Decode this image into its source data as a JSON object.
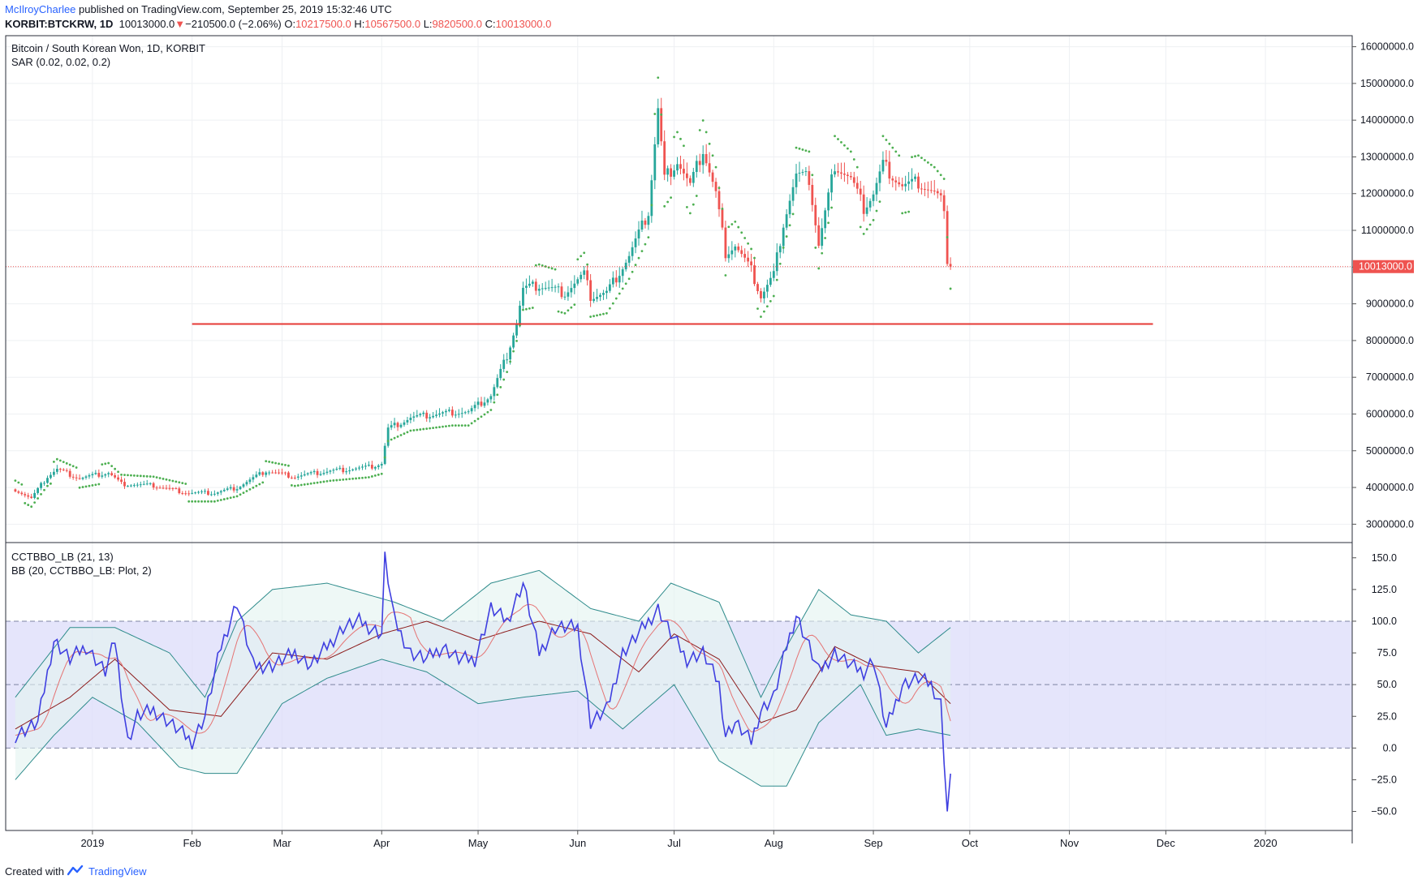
{
  "header": {
    "author": "McIlroyCharlee",
    "published": " published on TradingView.com, September 25, 2019 15:32:46 UTC",
    "symbol": "KORBIT:BTCKRW, 1D",
    "last": "10013000.0",
    "arrow": "▼",
    "change": "−210500.0 (−2.06%)",
    "o_label": "O:",
    "o_value": "10217500.0",
    "h_label": "H:",
    "h_value": "10567500.0",
    "l_label": "L:",
    "l_value": "9820500.0",
    "c_label": "C:",
    "c_value": "10013000.0"
  },
  "footer": {
    "created": "Created with",
    "brand": "TradingView"
  },
  "colors": {
    "up": "#26a69a",
    "down": "#ef5350",
    "sar": "#4caf50",
    "hline": "#e53935",
    "cct": "#3f3fe0",
    "bb_basis": "#8b1a1a",
    "bb_band": "#2e8b8b",
    "bb_fill": "#e3f4f0",
    "zone": "#dcdcfa",
    "grid": "#eef0f3"
  },
  "chart_data": [
    {
      "type": "candlestick",
      "title": "Bitcoin / South Korean Won, 1D, KORBIT",
      "indicator": "SAR (0.02, 0.02, 0.2)",
      "yticks": [
        3000000,
        4000000,
        5000000,
        6000000,
        7000000,
        8000000,
        9000000,
        10000000,
        11000000,
        12000000,
        13000000,
        14000000,
        15000000,
        16000000
      ],
      "ylim": [
        2500000,
        16300000
      ],
      "last_price": 10013000,
      "last_price_label": "10013000.0",
      "horizontal_line": {
        "value": 8450000,
        "from": "2019-02-01",
        "to": "2019-11-27"
      },
      "close_series_keypoints": [
        [
          "2018-12-08",
          3950000
        ],
        [
          "2018-12-13",
          3700000
        ],
        [
          "2018-12-18",
          4300000
        ],
        [
          "2018-12-21",
          4500000
        ],
        [
          "2018-12-28",
          4250000
        ],
        [
          "2019-01-06",
          4400000
        ],
        [
          "2019-01-10",
          4100000
        ],
        [
          "2019-01-20",
          4050000
        ],
        [
          "2019-01-31",
          3850000
        ],
        [
          "2019-02-08",
          3850000
        ],
        [
          "2019-02-15",
          4000000
        ],
        [
          "2019-02-24",
          4450000
        ],
        [
          "2019-03-05",
          4300000
        ],
        [
          "2019-03-16",
          4450000
        ],
        [
          "2019-03-28",
          4550000
        ],
        [
          "2019-04-01",
          4650000
        ],
        [
          "2019-04-03",
          5600000
        ],
        [
          "2019-04-10",
          5900000
        ],
        [
          "2019-04-23",
          6050000
        ],
        [
          "2019-04-28",
          6050000
        ],
        [
          "2019-05-05",
          6500000
        ],
        [
          "2019-05-10",
          7600000
        ],
        [
          "2019-05-13",
          8500000
        ],
        [
          "2019-05-15",
          9400000
        ],
        [
          "2019-05-20",
          9500000
        ],
        [
          "2019-05-28",
          9300000
        ],
        [
          "2019-06-03",
          9800000
        ],
        [
          "2019-06-05",
          9200000
        ],
        [
          "2019-06-10",
          9300000
        ],
        [
          "2019-06-17",
          10300000
        ],
        [
          "2019-06-23",
          11500000
        ],
        [
          "2019-06-26",
          14300000
        ],
        [
          "2019-06-28",
          12400000
        ],
        [
          "2019-07-02",
          12900000
        ],
        [
          "2019-07-06",
          12200000
        ],
        [
          "2019-07-10",
          13200000
        ],
        [
          "2019-07-14",
          12000000
        ],
        [
          "2019-07-17",
          10400000
        ],
        [
          "2019-07-20",
          10600000
        ],
        [
          "2019-07-25",
          9900000
        ],
        [
          "2019-07-28",
          9200000
        ],
        [
          "2019-08-01",
          9800000
        ],
        [
          "2019-08-04",
          11200000
        ],
        [
          "2019-08-08",
          12500000
        ],
        [
          "2019-08-12",
          12400000
        ],
        [
          "2019-08-15",
          10600000
        ],
        [
          "2019-08-20",
          12800000
        ],
        [
          "2019-08-25",
          12400000
        ],
        [
          "2019-08-29",
          11600000
        ],
        [
          "2019-09-01",
          12000000
        ],
        [
          "2019-09-04",
          12800000
        ],
        [
          "2019-09-10",
          12200000
        ],
        [
          "2019-09-15",
          12300000
        ],
        [
          "2019-09-20",
          12000000
        ],
        [
          "2019-09-23",
          11700000
        ],
        [
          "2019-09-24",
          10200000
        ],
        [
          "2019-09-25",
          10013000
        ]
      ]
    },
    {
      "type": "line",
      "title": "CCTBBO_LB (21, 13)",
      "indicator": "BB (20, CCTBBO_LB: Plot, 2)",
      "yticks": [
        -50,
        -25,
        0,
        25,
        50,
        75,
        100,
        125,
        150
      ],
      "ytick_labels": [
        "−50.0",
        "−25.0",
        "0.0",
        "25.0",
        "50.0",
        "75.0",
        "100.0",
        "125.0",
        "150.0"
      ],
      "ylim": [
        -65,
        162
      ],
      "zone": [
        0,
        100
      ],
      "dashed_levels": [
        0,
        50,
        100
      ],
      "series": [
        {
          "name": "CCTBBO_LB",
          "x": [
            "2018-12-08",
            "2018-12-15",
            "2018-12-20",
            "2018-12-25",
            "2018-12-30",
            "2019-01-05",
            "2019-01-08",
            "2019-01-12",
            "2019-01-15",
            "2019-01-20",
            "2019-01-25",
            "2019-02-01",
            "2019-02-05",
            "2019-02-10",
            "2019-02-15",
            "2019-02-20",
            "2019-02-26",
            "2019-03-05",
            "2019-03-10",
            "2019-03-15",
            "2019-03-20",
            "2019-03-25",
            "2019-04-01",
            "2019-04-02",
            "2019-04-05",
            "2019-04-10",
            "2019-04-15",
            "2019-04-20",
            "2019-04-25",
            "2019-04-30",
            "2019-05-05",
            "2019-05-10",
            "2019-05-15",
            "2019-05-20",
            "2019-05-25",
            "2019-06-01",
            "2019-06-05",
            "2019-06-10",
            "2019-06-15",
            "2019-06-20",
            "2019-06-26",
            "2019-06-30",
            "2019-07-05",
            "2019-07-10",
            "2019-07-15",
            "2019-07-17",
            "2019-07-20",
            "2019-07-25",
            "2019-07-28",
            "2019-08-01",
            "2019-08-05",
            "2019-08-08",
            "2019-08-12",
            "2019-08-15",
            "2019-08-20",
            "2019-08-25",
            "2019-08-29",
            "2019-09-01",
            "2019-09-05",
            "2019-09-10",
            "2019-09-15",
            "2019-09-19",
            "2019-09-22",
            "2019-09-24",
            "2019-09-25"
          ],
          "values": [
            10,
            20,
            85,
            70,
            80,
            60,
            85,
            5,
            25,
            30,
            20,
            5,
            25,
            80,
            115,
            65,
            65,
            75,
            65,
            80,
            95,
            100,
            90,
            150,
            100,
            75,
            70,
            80,
            70,
            70,
            110,
            100,
            130,
            75,
            95,
            95,
            20,
            30,
            75,
            90,
            110,
            90,
            70,
            75,
            50,
            10,
            20,
            5,
            30,
            40,
            80,
            105,
            80,
            60,
            75,
            65,
            60,
            70,
            15,
            50,
            55,
            50,
            35,
            -50,
            -25
          ]
        },
        {
          "name": "BB basis",
          "x": [
            "2018-12-08",
            "2018-12-25",
            "2019-01-08",
            "2019-01-25",
            "2019-02-10",
            "2019-02-26",
            "2019-03-15",
            "2019-04-01",
            "2019-04-15",
            "2019-05-01",
            "2019-05-20",
            "2019-06-05",
            "2019-06-20",
            "2019-07-01",
            "2019-07-15",
            "2019-07-28",
            "2019-08-08",
            "2019-08-20",
            "2019-09-01",
            "2019-09-15",
            "2019-09-25"
          ],
          "values": [
            15,
            40,
            70,
            30,
            25,
            75,
            70,
            90,
            100,
            85,
            100,
            90,
            60,
            90,
            70,
            20,
            30,
            80,
            65,
            60,
            35
          ]
        },
        {
          "name": "BB upper",
          "x": [
            "2018-12-08",
            "2018-12-25",
            "2019-01-08",
            "2019-01-25",
            "2019-02-05",
            "2019-02-15",
            "2019-02-26",
            "2019-03-15",
            "2019-04-05",
            "2019-04-20",
            "2019-05-05",
            "2019-05-20",
            "2019-06-05",
            "2019-06-20",
            "2019-06-30",
            "2019-07-15",
            "2019-07-28",
            "2019-08-05",
            "2019-08-15",
            "2019-08-25",
            "2019-09-05",
            "2019-09-15",
            "2019-09-25"
          ],
          "values": [
            40,
            95,
            95,
            75,
            40,
            100,
            125,
            130,
            115,
            100,
            130,
            140,
            110,
            100,
            130,
            115,
            40,
            80,
            125,
            105,
            100,
            75,
            95
          ]
        },
        {
          "name": "BB lower",
          "x": [
            "2018-12-08",
            "2018-12-20",
            "2019-01-01",
            "2019-01-15",
            "2019-01-28",
            "2019-02-05",
            "2019-02-15",
            "2019-03-01",
            "2019-03-15",
            "2019-04-01",
            "2019-04-15",
            "2019-05-01",
            "2019-05-15",
            "2019-06-01",
            "2019-06-15",
            "2019-07-01",
            "2019-07-15",
            "2019-07-28",
            "2019-08-05",
            "2019-08-15",
            "2019-08-28",
            "2019-09-05",
            "2019-09-15",
            "2019-09-25"
          ],
          "values": [
            -25,
            10,
            40,
            20,
            -15,
            -20,
            -20,
            35,
            55,
            70,
            60,
            35,
            40,
            45,
            15,
            50,
            -10,
            -30,
            -30,
            20,
            50,
            10,
            15,
            10
          ]
        }
      ]
    }
  ],
  "xaxis": {
    "labels": [
      "2019",
      "Feb",
      "Mar",
      "Apr",
      "May",
      "Jun",
      "Jul",
      "Aug",
      "Sep",
      "Oct",
      "Nov",
      "Dec",
      "2020"
    ],
    "dates": [
      "2019-01-01",
      "2019-02-01",
      "2019-03-01",
      "2019-04-01",
      "2019-05-01",
      "2019-06-01",
      "2019-07-01",
      "2019-08-01",
      "2019-09-01",
      "2019-10-01",
      "2019-11-01",
      "2019-12-01",
      "2020-01-01"
    ],
    "start": "2018-12-05",
    "end": "2020-01-28"
  }
}
